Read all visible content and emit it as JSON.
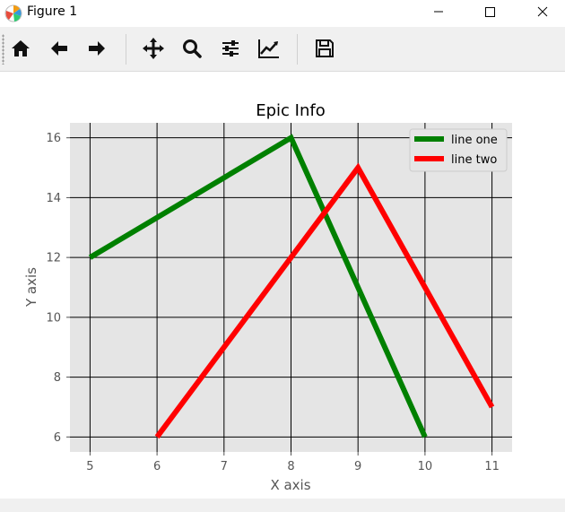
{
  "window": {
    "title": "Figure 1"
  },
  "toolbar": {
    "buttons": [
      {
        "icon": "home-icon"
      },
      {
        "icon": "back-arrow-icon"
      },
      {
        "icon": "forward-arrow-icon"
      },
      {
        "icon": "pan-icon"
      },
      {
        "icon": "zoom-icon"
      },
      {
        "icon": "configure-subplots-icon"
      },
      {
        "icon": "edit-axis-icon"
      },
      {
        "icon": "save-icon"
      }
    ]
  },
  "chart_data": {
    "type": "line",
    "title": "Epic Info",
    "xlabel": "X axis",
    "ylabel": "Y axis",
    "xlim": [
      4.7,
      11.3
    ],
    "ylim": [
      5.5,
      16.5
    ],
    "xticks": [
      5,
      6,
      7,
      8,
      9,
      10,
      11
    ],
    "yticks": [
      6,
      8,
      10,
      12,
      14,
      16
    ],
    "grid": true,
    "legend_position": "top-right",
    "background_color": "#e5e5e5",
    "grid_color": "#000000",
    "series": [
      {
        "name": "line one",
        "color": "#008000",
        "x": [
          5,
          8,
          10
        ],
        "y": [
          12,
          16,
          6
        ]
      },
      {
        "name": "line two",
        "color": "#ff0000",
        "x": [
          6,
          9,
          11
        ],
        "y": [
          6,
          15,
          7
        ]
      }
    ]
  }
}
